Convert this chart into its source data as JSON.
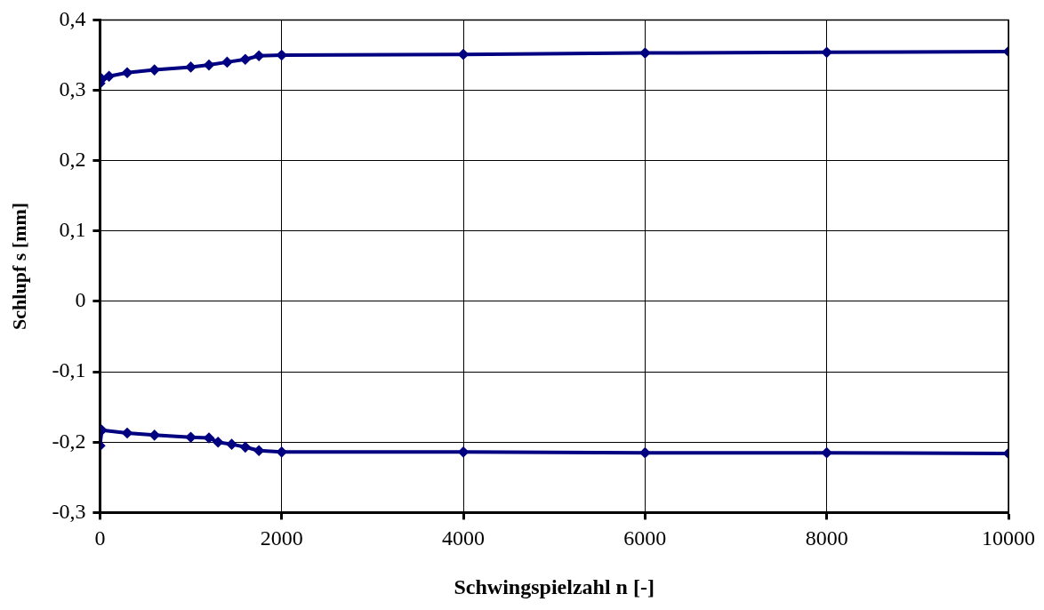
{
  "chart_data": {
    "type": "line",
    "xlabel": "Schwingspielzahl n [-]",
    "ylabel": "Schlupf s [mm]",
    "xlim": [
      0,
      10000
    ],
    "xticks": [
      0,
      2000,
      4000,
      6000,
      8000,
      10000
    ],
    "ylim": [
      -0.3,
      0.4
    ],
    "yticks": [
      {
        "value": -0.3,
        "label": "-0,3"
      },
      {
        "value": -0.2,
        "label": "-0,2"
      },
      {
        "value": -0.1,
        "label": "-0,1"
      },
      {
        "value": 0,
        "label": "0"
      },
      {
        "value": 0.1,
        "label": "0,1"
      },
      {
        "value": 0.2,
        "label": "0,2"
      },
      {
        "value": 0.3,
        "label": "0,3"
      },
      {
        "value": 0.4,
        "label": "0,4"
      }
    ],
    "grid": true,
    "legend": false,
    "marker": "diamond",
    "line_style": "solid",
    "series": [
      {
        "color": "#000080",
        "x": [
          0,
          20,
          100,
          300,
          600,
          1000,
          1200,
          1400,
          1600,
          1750,
          2000,
          4000,
          6000,
          8000,
          10000
        ],
        "values": [
          0.31,
          0.316,
          0.32,
          0.325,
          0.329,
          0.333,
          0.336,
          0.34,
          0.344,
          0.349,
          0.35,
          0.351,
          0.353,
          0.354,
          0.355
        ]
      },
      {
        "color": "#000080",
        "x": [
          0,
          20,
          300,
          600,
          1000,
          1200,
          1300,
          1450,
          1600,
          1750,
          2000,
          4000,
          6000,
          8000,
          10000
        ],
        "values": [
          -0.205,
          -0.183,
          -0.187,
          -0.19,
          -0.193,
          -0.194,
          -0.2,
          -0.203,
          -0.207,
          -0.212,
          -0.214,
          -0.214,
          -0.215,
          -0.215,
          -0.216
        ]
      }
    ]
  }
}
